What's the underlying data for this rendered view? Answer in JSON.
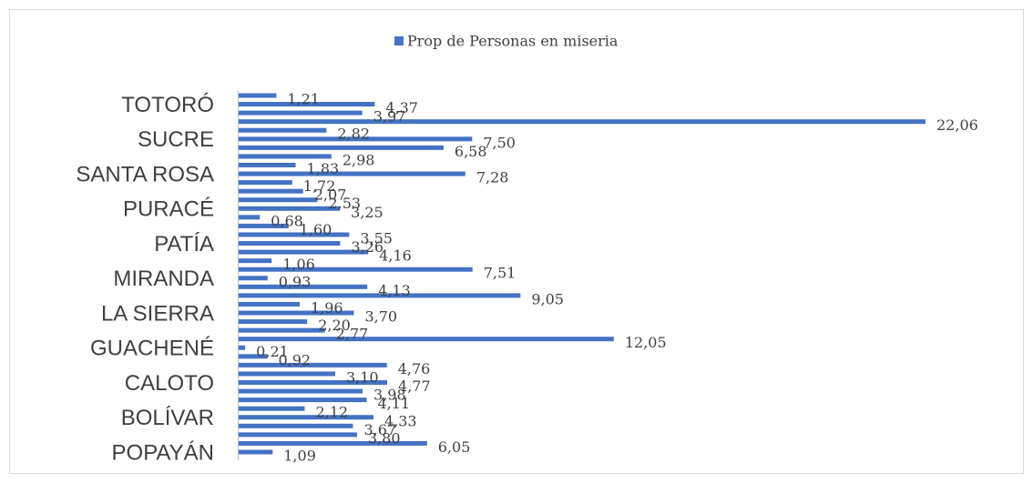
{
  "chart_data": {
    "type": "bar",
    "orientation": "horizontal",
    "legend": "top",
    "series": [
      {
        "name": "Prop de Personas en miseria",
        "color": "#4472c4",
        "values": [
          1.09,
          6.05,
          3.8,
          3.67,
          4.33,
          2.12,
          4.11,
          3.98,
          4.77,
          3.1,
          4.76,
          0.92,
          0.21,
          12.05,
          2.77,
          2.2,
          3.7,
          1.96,
          9.05,
          4.13,
          0.93,
          7.51,
          1.06,
          4.16,
          3.26,
          3.55,
          1.6,
          0.68,
          3.25,
          2.53,
          2.07,
          1.72,
          7.28,
          1.83,
          2.98,
          6.58,
          7.5,
          2.82,
          22.06,
          3.97,
          4.37,
          1.21
        ],
        "value_labels": [
          "1,09",
          "6,05",
          "3,80",
          "3,67",
          "4,33",
          "2,12",
          "4,11",
          "3,98",
          "4,77",
          "3,10",
          "4,76",
          "0,92",
          "0,21",
          "12,05",
          "2,77",
          "2,20",
          "3,70",
          "1,96",
          "9,05",
          "4,13",
          "0,93",
          "7,51",
          "1,06",
          "4,16",
          "3,26",
          "3,55",
          "1,60",
          "0,68",
          "3,25",
          "2,53",
          "2,07",
          "1,72",
          "7,28",
          "1,83",
          "2,98",
          "6,58",
          "7,50",
          "2,82",
          "22,06",
          "3,97",
          "4,37",
          "1,21"
        ]
      }
    ],
    "categories": [
      "POPAYÁN",
      null,
      null,
      null,
      "BOLÍVAR",
      null,
      null,
      null,
      "CALOTO",
      null,
      null,
      null,
      "GUACHENÉ",
      null,
      null,
      null,
      "LA SIERRA",
      null,
      null,
      null,
      "MIRANDA",
      null,
      null,
      null,
      "PATÍA",
      null,
      null,
      null,
      "PURACÉ",
      null,
      null,
      null,
      "SANTA ROSA",
      null,
      null,
      null,
      "SUCRE",
      null,
      null,
      null,
      "TOTORÓ",
      null
    ]
  }
}
